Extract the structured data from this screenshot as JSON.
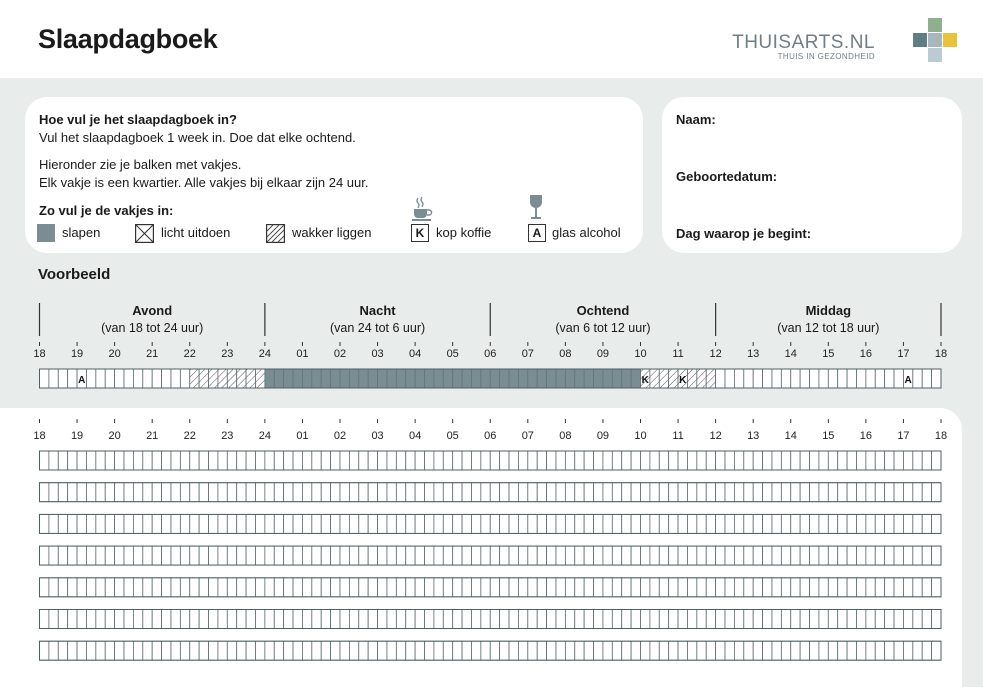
{
  "header": {
    "title": "Slaapdagboek"
  },
  "logo": {
    "name": "THUISARTS.NL",
    "tagline": "THUIS IN GEZONDHEID"
  },
  "instructions": {
    "heading": "Hoe vul je het slaapdagboek in?",
    "line1": "Vul het slaapdagboek 1 week in. Doe dat elke ochtend.",
    "line2": "Hieronder zie je balken met vakjes.",
    "line3": "Elk vakje is een kwartier. Alle vakjes bij elkaar zijn 24 uur.",
    "legend_heading": "Zo vul je de vakjes in:",
    "legend": [
      {
        "label": "slapen",
        "icon": "filled-square-icon"
      },
      {
        "label": "licht uitdoen",
        "icon": "crossed-square-icon"
      },
      {
        "label": "wakker liggen",
        "icon": "hatched-square-icon"
      },
      {
        "label": "kop koffie",
        "letter": "K",
        "icon": "coffee-cup-icon"
      },
      {
        "label": "glas alcohol",
        "letter": "A",
        "icon": "wine-glass-icon"
      }
    ]
  },
  "personal": {
    "name_label": "Naam:",
    "birthdate_label": "Geboortedatum:",
    "start_label": "Dag waarop je begint:"
  },
  "example": {
    "title": "Voorbeeld",
    "periods": [
      {
        "name": "Avond",
        "range": "(van 18 tot 24 uur)"
      },
      {
        "name": "Nacht",
        "range": "(van 24 tot 6 uur)"
      },
      {
        "name": "Ochtend",
        "range": "(van 6 tot 12 uur)"
      },
      {
        "name": "Middag",
        "range": "(van 12 tot 18 uur)"
      }
    ]
  },
  "hours": [
    "18",
    "19",
    "20",
    "21",
    "22",
    "23",
    "24",
    "01",
    "02",
    "03",
    "04",
    "05",
    "06",
    "07",
    "08",
    "09",
    "10",
    "11",
    "12",
    "13",
    "14",
    "15",
    "16",
    "17",
    "18"
  ],
  "example_bar": {
    "hatched_cells": [
      16,
      17,
      18,
      19,
      20,
      21,
      22,
      23,
      64,
      65,
      66,
      67,
      68,
      69,
      70,
      71
    ],
    "sleep_cells": [
      24,
      25,
      26,
      27,
      28,
      29,
      30,
      31,
      32,
      33,
      34,
      35,
      36,
      37,
      38,
      39,
      40,
      41,
      42,
      43,
      44,
      45,
      46,
      47,
      48,
      49,
      50,
      51,
      52,
      53,
      54,
      55,
      56,
      57,
      58,
      59,
      60,
      61,
      62,
      63
    ],
    "marks": [
      {
        "cell": 4,
        "letter": "A"
      },
      {
        "cell": 64,
        "letter": "K"
      },
      {
        "cell": 68,
        "letter": "K"
      },
      {
        "cell": 92,
        "letter": "A"
      }
    ]
  },
  "empty_bars": 7,
  "colors": {
    "sleep": "#7a8d93",
    "background": "#e8ecea",
    "logo_gray": "#6f7e86"
  }
}
